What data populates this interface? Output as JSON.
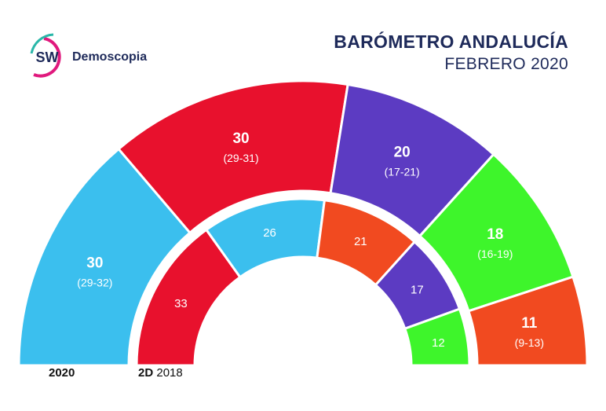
{
  "brand": {
    "logo_initials": "SW",
    "name": "Demoscopia",
    "colors": {
      "ring_pink": "#e0197d",
      "ring_teal": "#2ab7a9",
      "text": "#1e2a5a"
    }
  },
  "title": "BARÓMETRO ANDALUCÍA",
  "subtitle": "FEBRERO 2020",
  "labels": {
    "outer_year": "2020",
    "inner_prefix": "2D",
    "inner_year": "2018"
  },
  "chart_data": [
    {
      "type": "parliament",
      "name": "2020",
      "total": 109,
      "segments": [
        {
          "value": 30,
          "range": "(29-32)",
          "color": "#3bbfee"
        },
        {
          "value": 30,
          "range": "(29-31)",
          "color": "#e8112d"
        },
        {
          "value": 20,
          "range": "(17-21)",
          "color": "#5c3bc2"
        },
        {
          "value": 18,
          "range": "(16-19)",
          "color": "#3ef52b"
        },
        {
          "value": 11,
          "range": "(9-13)",
          "color": "#f14a20"
        }
      ]
    },
    {
      "type": "parliament",
      "name": "2D 2018",
      "total": 109,
      "segments": [
        {
          "value": 33,
          "color": "#e8112d"
        },
        {
          "value": 26,
          "color": "#3bbfee"
        },
        {
          "value": 21,
          "color": "#f14a20"
        },
        {
          "value": 17,
          "color": "#5c3bc2"
        },
        {
          "value": 12,
          "color": "#3ef52b"
        }
      ]
    }
  ]
}
